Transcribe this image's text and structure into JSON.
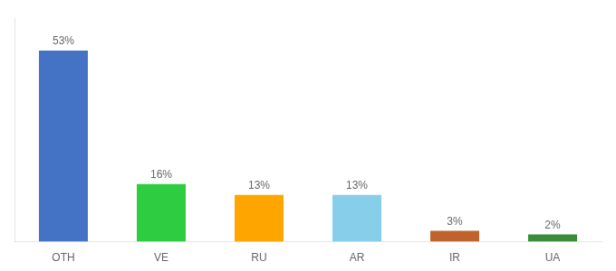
{
  "chart_data": {
    "type": "bar",
    "categories": [
      "OTH",
      "VE",
      "RU",
      "AR",
      "IR",
      "UA"
    ],
    "values": [
      53,
      16,
      13,
      13,
      3,
      2
    ],
    "value_labels": [
      "53%",
      "16%",
      "13%",
      "13%",
      "3%",
      "2%"
    ],
    "colors": [
      "#4472C4",
      "#2ECC40",
      "#FFA500",
      "#87CEEB",
      "#C0622B",
      "#3A8C3A"
    ],
    "ylim": [
      0,
      62
    ],
    "grid": false,
    "data_labels": true,
    "tick_labels": "x"
  }
}
